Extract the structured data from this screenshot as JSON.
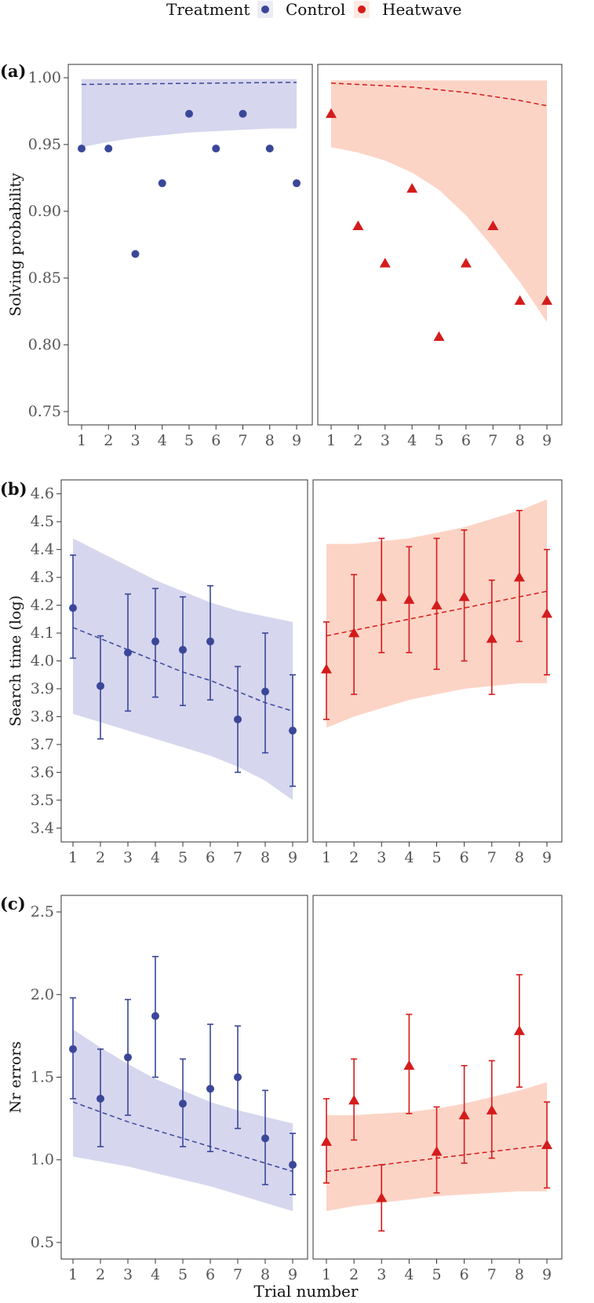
{
  "legend": {
    "title": "Treatment",
    "items": [
      {
        "label": "Control",
        "color": "#3a4799",
        "shape": "circle"
      },
      {
        "label": "Heatwave",
        "color": "#d51b1b",
        "shape": "triangle"
      }
    ]
  },
  "colors": {
    "control": "#3a4799",
    "control_ribbon": "#d6d6ee",
    "heatwave": "#d51b1b",
    "heatwave_ribbon": "#fcd4c6"
  },
  "xlabel": "Trial number",
  "chart_data": [
    {
      "panel_label": "(a)",
      "type": "scatter",
      "ylabel": "Solving probability",
      "ylim": [
        0.74,
        1.01
      ],
      "yticks": [
        "0.75",
        "0.80",
        "0.85",
        "0.90",
        "0.95",
        "1.00"
      ],
      "x": [
        1,
        2,
        3,
        4,
        5,
        6,
        7,
        8,
        9
      ],
      "xticks": [
        "1",
        "2",
        "3",
        "4",
        "5",
        "6",
        "7",
        "8",
        "9"
      ],
      "series": [
        {
          "name": "Control",
          "values": [
            0.947,
            0.947,
            0.868,
            0.921,
            0.973,
            0.947,
            0.973,
            0.947,
            0.921
          ],
          "fit": [
            0.995,
            0.9952,
            0.9954,
            0.9956,
            0.9958,
            0.996,
            0.9962,
            0.9964,
            0.9965
          ],
          "ribbon_lower": [
            0.948,
            0.952,
            0.955,
            0.957,
            0.959,
            0.96,
            0.961,
            0.962,
            0.962
          ],
          "ribbon_upper": [
            0.999,
            0.999,
            0.999,
            0.999,
            0.999,
            0.999,
            0.999,
            0.999,
            0.999
          ]
        },
        {
          "name": "Heatwave",
          "values": [
            0.973,
            0.889,
            0.861,
            0.917,
            0.806,
            0.861,
            0.889,
            0.833,
            0.833
          ],
          "fit": [
            0.996,
            0.995,
            0.994,
            0.993,
            0.991,
            0.989,
            0.986,
            0.983,
            0.979
          ],
          "ribbon_lower": [
            0.948,
            0.944,
            0.938,
            0.929,
            0.916,
            0.897,
            0.873,
            0.847,
            0.817
          ],
          "ribbon_upper": [
            0.998,
            0.998,
            0.998,
            0.998,
            0.998,
            0.998,
            0.998,
            0.998,
            0.998
          ]
        }
      ]
    },
    {
      "panel_label": "(b)",
      "type": "scatter",
      "ylabel": "Search time (log)",
      "ylim": [
        3.35,
        4.65
      ],
      "yticks": [
        "3.4",
        "3.5",
        "3.6",
        "3.7",
        "3.8",
        "3.9",
        "4.0",
        "4.1",
        "4.2",
        "4.3",
        "4.4",
        "4.5",
        "4.6"
      ],
      "x": [
        1,
        2,
        3,
        4,
        5,
        6,
        7,
        8,
        9
      ],
      "xticks": [
        "1",
        "2",
        "3",
        "4",
        "5",
        "6",
        "7",
        "8",
        "9"
      ],
      "series": [
        {
          "name": "Control",
          "values": [
            4.19,
            3.91,
            4.03,
            4.07,
            4.04,
            4.07,
            3.79,
            3.89,
            3.75
          ],
          "err_lower": [
            4.01,
            3.72,
            3.82,
            3.87,
            3.84,
            3.86,
            3.6,
            3.67,
            3.55
          ],
          "err_upper": [
            4.38,
            4.09,
            4.24,
            4.26,
            4.23,
            4.27,
            3.98,
            4.1,
            3.95
          ],
          "fit": [
            4.12,
            4.08,
            4.04,
            4.0,
            3.96,
            3.93,
            3.89,
            3.85,
            3.82
          ],
          "ribbon_lower": [
            3.81,
            3.78,
            3.75,
            3.72,
            3.69,
            3.66,
            3.62,
            3.57,
            3.5
          ],
          "ribbon_upper": [
            4.44,
            4.39,
            4.34,
            4.29,
            4.25,
            4.21,
            4.18,
            4.16,
            4.14
          ]
        },
        {
          "name": "Heatwave",
          "values": [
            3.97,
            4.1,
            4.23,
            4.22,
            4.2,
            4.23,
            4.08,
            4.3,
            4.17
          ],
          "err_lower": [
            3.79,
            3.88,
            4.03,
            4.03,
            3.97,
            4.0,
            3.88,
            4.07,
            3.95
          ],
          "err_upper": [
            4.14,
            4.31,
            4.44,
            4.41,
            4.44,
            4.47,
            4.29,
            4.54,
            4.4
          ],
          "fit": [
            4.09,
            4.11,
            4.13,
            4.15,
            4.17,
            4.19,
            4.21,
            4.23,
            4.25
          ],
          "ribbon_lower": [
            3.76,
            3.8,
            3.83,
            3.86,
            3.88,
            3.9,
            3.91,
            3.92,
            3.92
          ],
          "ribbon_upper": [
            4.42,
            4.42,
            4.43,
            4.44,
            4.46,
            4.48,
            4.51,
            4.54,
            4.58
          ]
        }
      ]
    },
    {
      "panel_label": "(c)",
      "type": "scatter",
      "ylabel": "Nr errors",
      "ylim": [
        0.4,
        2.6
      ],
      "yticks": [
        "0.5",
        "1.0",
        "1.5",
        "2.0",
        "2.5"
      ],
      "x": [
        1,
        2,
        3,
        4,
        5,
        6,
        7,
        8,
        9
      ],
      "xticks": [
        "1",
        "2",
        "3",
        "4",
        "5",
        "6",
        "7",
        "8",
        "9"
      ],
      "series": [
        {
          "name": "Control",
          "values": [
            1.67,
            1.37,
            1.62,
            1.87,
            1.34,
            1.43,
            1.5,
            1.13,
            0.97
          ],
          "err_lower": [
            1.37,
            1.08,
            1.27,
            1.5,
            1.08,
            1.05,
            1.19,
            0.85,
            0.79
          ],
          "err_upper": [
            1.98,
            1.67,
            1.97,
            2.23,
            1.61,
            1.82,
            1.81,
            1.42,
            1.16
          ],
          "fit": [
            1.35,
            1.29,
            1.23,
            1.18,
            1.13,
            1.08,
            1.03,
            0.98,
            0.93
          ],
          "ribbon_lower": [
            1.02,
            0.99,
            0.96,
            0.92,
            0.88,
            0.84,
            0.79,
            0.74,
            0.69
          ],
          "ribbon_upper": [
            1.79,
            1.68,
            1.58,
            1.49,
            1.42,
            1.35,
            1.3,
            1.26,
            1.22
          ]
        },
        {
          "name": "Heatwave",
          "values": [
            1.11,
            1.36,
            0.77,
            1.57,
            1.05,
            1.27,
            1.3,
            1.78,
            1.09
          ],
          "err_lower": [
            0.86,
            1.12,
            0.57,
            1.28,
            0.8,
            0.98,
            1.01,
            1.44,
            0.83
          ],
          "err_upper": [
            1.37,
            1.61,
            0.97,
            1.88,
            1.32,
            1.57,
            1.6,
            2.12,
            1.35
          ],
          "fit": [
            0.93,
            0.95,
            0.97,
            0.99,
            1.01,
            1.03,
            1.05,
            1.07,
            1.09
          ],
          "ribbon_lower": [
            0.69,
            0.72,
            0.74,
            0.76,
            0.78,
            0.79,
            0.8,
            0.81,
            0.81
          ],
          "ribbon_upper": [
            1.27,
            1.27,
            1.28,
            1.29,
            1.31,
            1.34,
            1.38,
            1.42,
            1.47
          ]
        }
      ]
    }
  ]
}
